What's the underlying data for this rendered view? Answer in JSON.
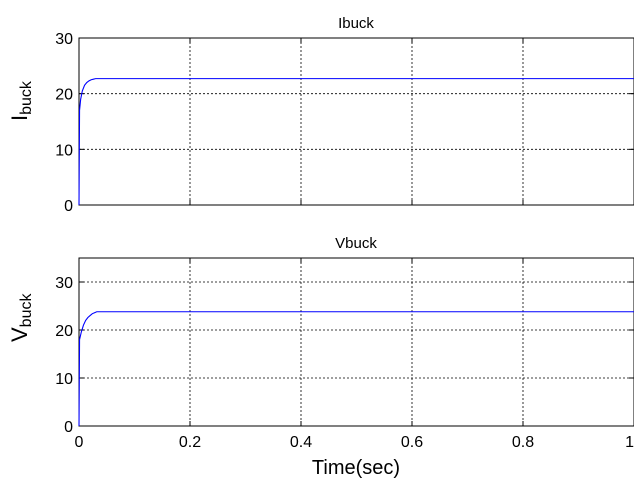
{
  "figure": {
    "x_shared_label": "Time(sec)"
  },
  "chart_data": [
    {
      "type": "line",
      "title": "Ibuck",
      "ylabel_main": "I",
      "ylabel_sub": "buck",
      "xlim": [
        0,
        1
      ],
      "ylim": [
        0,
        30
      ],
      "yticks": [
        0,
        10,
        20,
        30
      ],
      "xticks": [
        0,
        0.2,
        0.4,
        0.6,
        0.8,
        1
      ],
      "xtick_labels": [
        "0",
        "0.2",
        "0.4",
        "0.6",
        "0.8",
        "1"
      ],
      "grid": true,
      "line_color": "#0000ff",
      "series": [
        {
          "x": [
            0,
            0.001,
            0.003,
            0.006,
            0.01,
            0.014,
            0.018,
            0.022,
            0.026,
            0.03,
            0.05,
            0.1,
            0.2,
            0.4,
            0.6,
            0.8,
            1.0
          ],
          "values": [
            0,
            17,
            19,
            20.5,
            21.5,
            22,
            22.3,
            22.5,
            22.6,
            22.7,
            22.7,
            22.7,
            22.7,
            22.7,
            22.7,
            22.7,
            22.7
          ]
        }
      ]
    },
    {
      "type": "line",
      "title": "Vbuck",
      "ylabel_main": "V",
      "ylabel_sub": "buck",
      "xlabel": "Time(sec)",
      "xlim": [
        0,
        1
      ],
      "ylim": [
        0,
        35
      ],
      "yticks": [
        0,
        10,
        20,
        30
      ],
      "xticks": [
        0,
        0.2,
        0.4,
        0.6,
        0.8,
        1
      ],
      "xtick_labels": [
        "0",
        "0.2",
        "0.4",
        "0.6",
        "0.8",
        "1"
      ],
      "grid": true,
      "line_color": "#0000ff",
      "series": [
        {
          "x": [
            0,
            0.001,
            0.004,
            0.008,
            0.012,
            0.016,
            0.02,
            0.024,
            0.028,
            0.032,
            0.05,
            0.1,
            0.2,
            0.4,
            0.6,
            0.8,
            1.0
          ],
          "values": [
            0,
            18,
            19.5,
            21,
            22,
            22.6,
            23,
            23.4,
            23.6,
            23.8,
            23.8,
            23.8,
            23.8,
            23.8,
            23.8,
            23.8,
            23.8
          ]
        }
      ]
    }
  ]
}
